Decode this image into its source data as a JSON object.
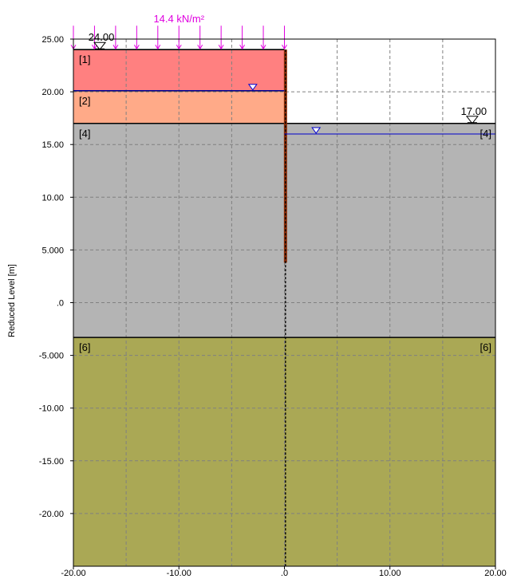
{
  "y_axis_title": "Reduced Level [m]",
  "surcharge": {
    "label": "14.4 kN/m²",
    "color": "#e000e0",
    "x_from": -20,
    "x_to": 0,
    "level": 24
  },
  "x_axis": {
    "min": -20,
    "max": 20,
    "ticks": [
      {
        "v": -20,
        "label": "-20.00"
      },
      {
        "v": -10,
        "label": "-10.00"
      },
      {
        "v": 0,
        "label": ".0"
      },
      {
        "v": 10,
        "label": "10.00"
      },
      {
        "v": 20,
        "label": "20.00"
      }
    ]
  },
  "y_axis": {
    "min": -25,
    "max": 25,
    "ticks": [
      {
        "v": 25,
        "label": "25.00"
      },
      {
        "v": 20,
        "label": "20.00"
      },
      {
        "v": 15,
        "label": "15.00"
      },
      {
        "v": 10,
        "label": "10.00"
      },
      {
        "v": 5,
        "label": "5.000"
      },
      {
        "v": 0,
        "label": ".0"
      },
      {
        "v": -5,
        "label": "-5.000"
      },
      {
        "v": -10,
        "label": "-10.00"
      },
      {
        "v": -15,
        "label": "-15.00"
      },
      {
        "v": -20,
        "label": "-20.00"
      }
    ]
  },
  "grid": {
    "dx": 5,
    "dy": 5
  },
  "ground_left": {
    "level": 24,
    "label": "24.00",
    "marker_x": -17.5
  },
  "ground_right": {
    "level": 17,
    "label": "17.00",
    "marker_x": 17.8
  },
  "layers": [
    {
      "label": "[1]",
      "x_from": -20,
      "x_to": 0,
      "top": 24,
      "bottom": 20.1,
      "color": "#ff8080"
    },
    {
      "label": "[2]",
      "x_from": -20,
      "x_to": 0,
      "top": 20.1,
      "bottom": 17,
      "color": "#ffaa88"
    },
    {
      "label": "[4]",
      "x_from": -20,
      "x_to": 20,
      "top": 17,
      "bottom": -3.3,
      "color": "#b4b4b4",
      "label_right": "[4]"
    },
    {
      "label": "[6]",
      "x_from": -20,
      "x_to": 20,
      "top": -3.3,
      "bottom": -25,
      "color": "#aaa855",
      "label_right": "[6]"
    }
  ],
  "water_left": {
    "level": 20.1,
    "marker_x": -3,
    "color": "#0000cc"
  },
  "water_right": {
    "level": 16,
    "marker_x": 3,
    "color": "#0000cc"
  },
  "wall": {
    "x": 0.1,
    "top": 24,
    "toe": 3.8,
    "color": "#8b2e0a"
  }
}
